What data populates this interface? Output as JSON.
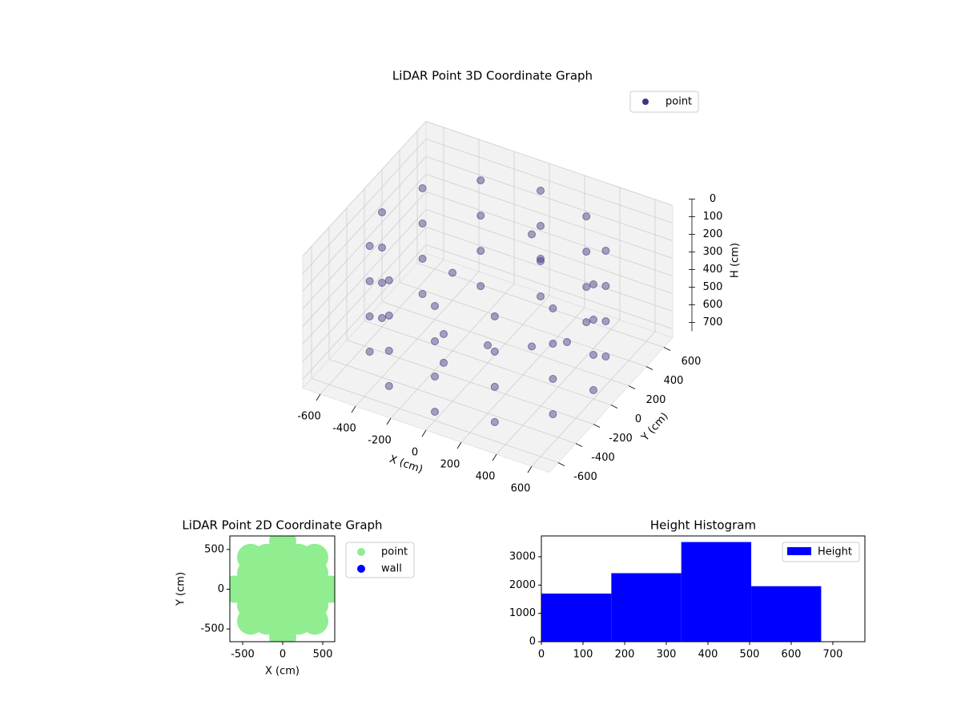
{
  "chart_data": [
    {
      "type": "scatter3d",
      "title": "LiDAR Point 3D Coordinate Graph",
      "xlabel": "X (cm)",
      "ylabel": "Y (cm)",
      "zlabel": "H (cm)",
      "xlim": [
        -700,
        700
      ],
      "ylim": [
        -700,
        700
      ],
      "zlim": [
        750,
        0
      ],
      "xticks": [
        -600,
        -400,
        -200,
        0,
        200,
        400,
        600
      ],
      "yticks": [
        -600,
        -400,
        -200,
        0,
        200,
        400,
        600
      ],
      "zticks": [
        0,
        100,
        200,
        300,
        400,
        500,
        600,
        700
      ],
      "grid": true,
      "legend": "upper right",
      "series": [
        {
          "name": "point",
          "color": "#46327e",
          "x": [
            600,
            520,
            300,
            0,
            -300,
            -520,
            -600,
            -520,
            -300,
            0,
            300,
            520,
            600,
            520,
            300,
            0,
            -300,
            -520,
            -600,
            -520,
            -300,
            0,
            300,
            520,
            600,
            520,
            300,
            0,
            -300,
            -520,
            -600,
            -520,
            -300,
            0,
            300,
            520,
            600,
            520,
            300,
            0,
            -300,
            -520,
            -600,
            -520,
            -300,
            0,
            300,
            520,
            100,
            200,
            -200,
            300,
            -300,
            0,
            400,
            -100
          ],
          "y": [
            0,
            300,
            520,
            600,
            520,
            300,
            0,
            -300,
            -520,
            -600,
            -520,
            -300,
            0,
            300,
            520,
            600,
            520,
            300,
            0,
            -300,
            -520,
            -600,
            -520,
            -300,
            0,
            300,
            520,
            600,
            520,
            300,
            0,
            -300,
            -520,
            -600,
            -520,
            -300,
            0,
            300,
            520,
            600,
            520,
            300,
            0,
            -300,
            -520,
            -600,
            -520,
            -300,
            300,
            200,
            -100,
            -100,
            200,
            0,
            100,
            -300
          ],
          "z": [
            100,
            100,
            100,
            100,
            100,
            100,
            100,
            100,
            100,
            100,
            100,
            100,
            300,
            300,
            300,
            300,
            300,
            300,
            300,
            300,
            300,
            300,
            300,
            300,
            500,
            500,
            500,
            500,
            500,
            500,
            500,
            500,
            500,
            500,
            500,
            500,
            700,
            700,
            700,
            700,
            700,
            700,
            700,
            700,
            700,
            700,
            700,
            700,
            150,
            200,
            600,
            500,
            450,
            650,
            550,
            620
          ]
        }
      ]
    },
    {
      "type": "scatter",
      "title": "LiDAR Point 2D Coordinate Graph",
      "xlabel": "X (cm)",
      "ylabel": "Y (cm)",
      "xlim": [
        -660,
        650
      ],
      "ylim": [
        -660,
        670
      ],
      "xticks": [
        -500,
        0,
        500
      ],
      "yticks": [
        -500,
        0,
        500
      ],
      "legend": "outside right",
      "series": [
        {
          "name": "point",
          "color": "#90ee90",
          "x": [
            -600,
            600,
            -400,
            -400,
            -400,
            -400,
            -400,
            400,
            400,
            400,
            400,
            400,
            -200,
            -200,
            -200,
            -200,
            -200,
            200,
            200,
            200,
            200,
            200,
            0,
            0,
            0,
            0,
            0,
            0,
            0
          ],
          "y": [
            0,
            0,
            -400,
            -200,
            0,
            200,
            400,
            -400,
            -200,
            0,
            200,
            400,
            -400,
            -200,
            0,
            200,
            400,
            -400,
            -200,
            0,
            200,
            400,
            -600,
            -400,
            -200,
            0,
            200,
            400,
            600
          ]
        },
        {
          "name": "wall",
          "color": "#0000ff",
          "x": [],
          "y": []
        }
      ]
    },
    {
      "type": "histogram",
      "title": "Height Histogram",
      "bins": [
        0,
        168,
        336,
        504,
        672
      ],
      "xlim": [
        0,
        777
      ],
      "ylim": [
        0,
        3735
      ],
      "xticks": [
        0,
        100,
        200,
        300,
        400,
        500,
        600,
        700
      ],
      "yticks": [
        0,
        1000,
        2000,
        3000
      ],
      "legend": "upper right",
      "series": [
        {
          "name": "Height",
          "color": "#0000ff",
          "values": [
            1700,
            2420,
            3520,
            1960
          ]
        }
      ]
    }
  ]
}
